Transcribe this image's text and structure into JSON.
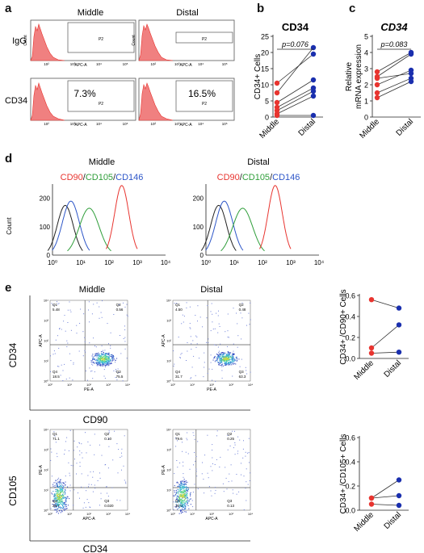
{
  "panels": {
    "a": "a",
    "b": "b",
    "c": "c",
    "d": "d",
    "e": "e"
  },
  "colors": {
    "red": "#e8342f",
    "green": "#2f9e3a",
    "blue": "#2d56c8",
    "navy": "#1a2fae",
    "black": "#222222",
    "fill_red": "#f08080"
  },
  "a": {
    "col_middle": "Middle",
    "col_distal": "Distal",
    "row_igg": "IgG",
    "row_cd34": "CD34",
    "gate": "P2",
    "xaxis": "APC-A",
    "yaxis": "Count",
    "pct_middle": "7.3%",
    "pct_distal": "16.5%",
    "ticks": [
      "10²",
      "10³",
      "10⁴",
      "10⁵"
    ]
  },
  "chart_data": [
    {
      "id": "b",
      "type": "scatter",
      "title": "CD34",
      "ylabel": "CD34+ Cells",
      "categories": [
        "Middle",
        "Distal"
      ],
      "ylim": [
        0,
        25
      ],
      "yticks": [
        "0",
        "5",
        "10",
        "15",
        "20",
        "25"
      ],
      "pvalue": "p=0.076",
      "pairs": [
        [
          10.5,
          19.5
        ],
        [
          7.5,
          21.5
        ],
        [
          4.5,
          11.5
        ],
        [
          3,
          9
        ],
        [
          2,
          8
        ],
        [
          1,
          6.5
        ],
        [
          0.5,
          0.5
        ]
      ]
    },
    {
      "id": "c",
      "type": "scatter",
      "title": "CD34",
      "ylabel": "Relative mRNA expression",
      "categories": [
        "Middle",
        "Distal"
      ],
      "ylim": [
        0,
        5
      ],
      "yticks": [
        "0",
        "1",
        "2",
        "3",
        "4",
        "5"
      ],
      "pvalue": "p=0.083",
      "pairs": [
        [
          2.8,
          4.0
        ],
        [
          2.5,
          3.9
        ],
        [
          2.4,
          2.7
        ],
        [
          2.0,
          2.9
        ],
        [
          1.5,
          2.4
        ],
        [
          1.2,
          2.2
        ]
      ]
    },
    {
      "id": "e-cd90",
      "type": "scatter",
      "ylabel": "CD34+ /CD90+ Cells",
      "categories": [
        "Middle",
        "Distal"
      ],
      "ylim": [
        0,
        0.6
      ],
      "yticks": [
        "0.0",
        "0.2",
        "0.4",
        "0.6"
      ],
      "pairs": [
        [
          0.56,
          0.48
        ],
        [
          0.1,
          0.32
        ],
        [
          0.05,
          0.06
        ]
      ]
    },
    {
      "id": "e-cd105",
      "type": "scatter",
      "ylabel": "CD34+ /CD105+ Cells",
      "categories": [
        "Middle",
        "Distal"
      ],
      "ylim": [
        0,
        0.6
      ],
      "yticks": [
        "0.0",
        "0.2",
        "0.4",
        "0.6"
      ],
      "pairs": [
        [
          0.1,
          0.25
        ],
        [
          0.1,
          0.12
        ],
        [
          0.05,
          0.04
        ]
      ]
    }
  ],
  "d": {
    "col_middle": "Middle",
    "col_distal": "Distal",
    "legend": [
      {
        "text": "CD90",
        "color": "#e8342f"
      },
      {
        "text": "/",
        "color": "#222222"
      },
      {
        "text": "CD105",
        "color": "#2f9e3a"
      },
      {
        "text": "/",
        "color": "#222222"
      },
      {
        "text": "CD146",
        "color": "#2d56c8"
      }
    ],
    "ylabel": "Count",
    "yticks": [
      "0",
      "100",
      "200"
    ],
    "xticks": [
      "10⁰",
      "10¹",
      "10²",
      "10³",
      "10⁴"
    ]
  },
  "e": {
    "col_middle": "Middle",
    "col_distal": "Distal",
    "top": {
      "ylabel": "CD34",
      "xlabel": "CD90",
      "xaxis": "PE-A",
      "yaxis": "APC-A",
      "middle": {
        "q1": "5.48",
        "q2": "0.56",
        "q4": "18.5",
        "q3": "75.5"
      },
      "distal": {
        "q1": "4.50",
        "q2": "0.48",
        "q4": "31.7",
        "q3": "63.3"
      }
    },
    "bottom": {
      "ylabel": "CD105",
      "xlabel": "CD34",
      "xaxis": "APC-A",
      "yaxis": "PE-A",
      "middle": {
        "q1": "71.1",
        "q2": "0.10",
        "q4": "28.7",
        "q3": "0.020"
      },
      "distal": {
        "q1": "79.6",
        "q2": "0.25",
        "q4": "20.0",
        "q3": "0.13"
      }
    },
    "ql": {
      "q1": "Q1",
      "q2": "Q2",
      "q3": "Q3",
      "q4": "Q4"
    },
    "ticks": [
      "10⁰",
      "10¹",
      "10²",
      "10³",
      "10⁴"
    ]
  }
}
